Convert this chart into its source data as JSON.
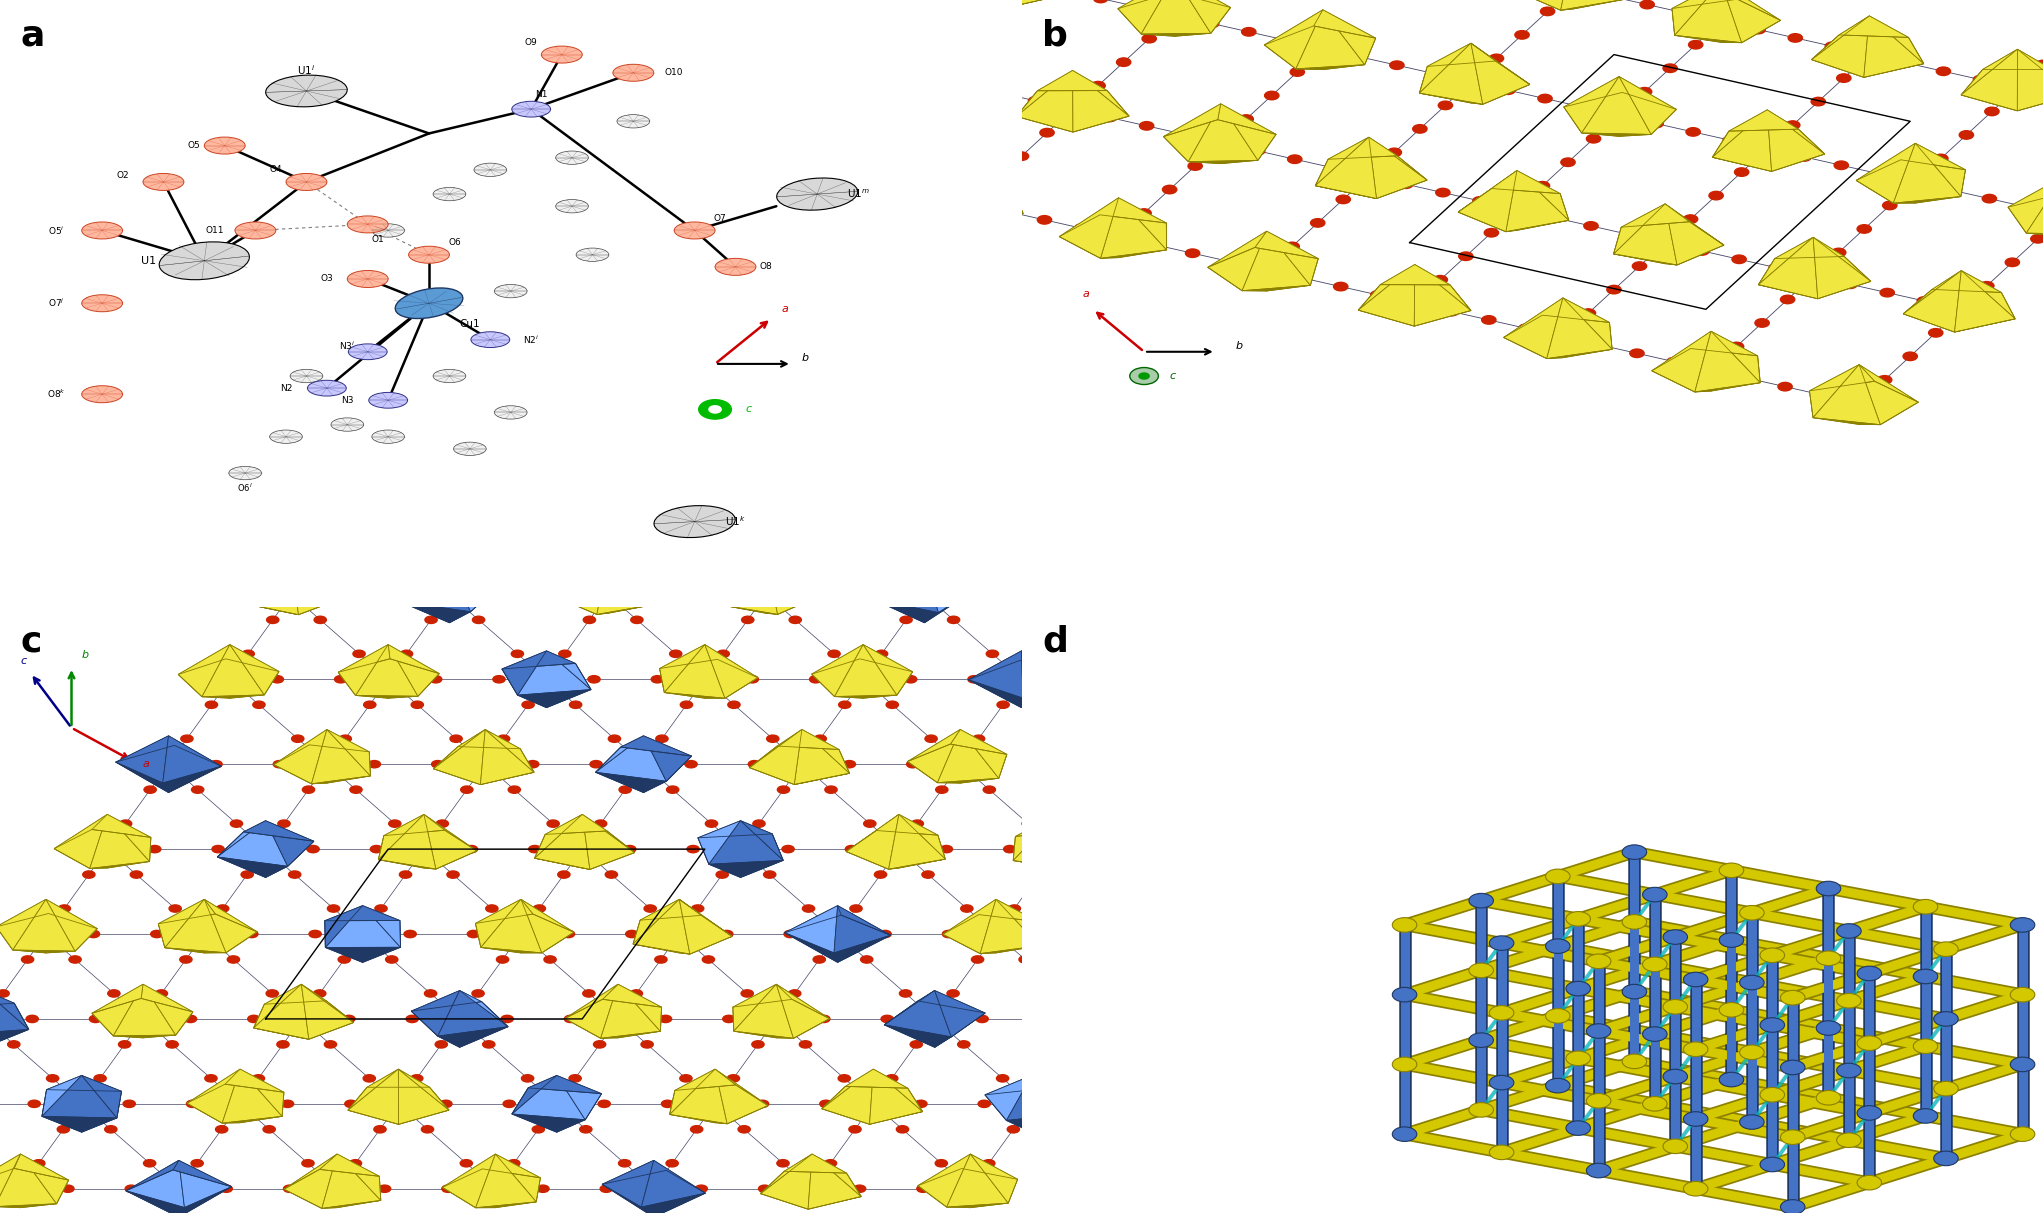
{
  "figure_width": 20.43,
  "figure_height": 12.13,
  "bg_color": "#ffffff",
  "panel_labels": [
    "a",
    "b",
    "c",
    "d"
  ],
  "panel_label_fontsize": 26,
  "panel_label_weight": "bold",
  "yellow_color": "#D4C800",
  "yellow_light": "#F0E840",
  "yellow_dark": "#8B8000",
  "blue_color": "#4472C4",
  "blue_dark": "#1F3864",
  "blue_light": "#7AADFF",
  "cyan_color": "#00C8C8",
  "red_color": "#CC2200",
  "stick_color": "#444466"
}
